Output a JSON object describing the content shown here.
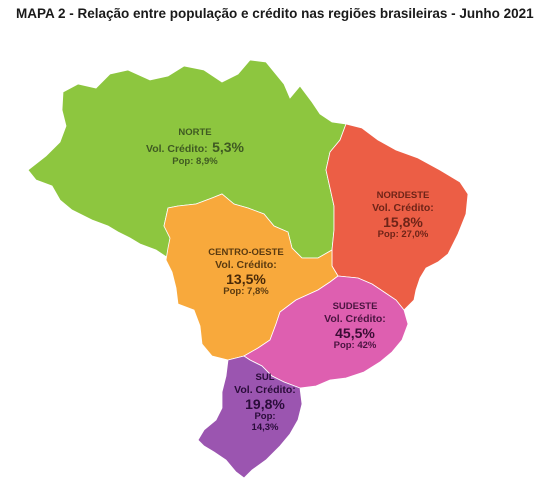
{
  "title": "MAPA 2 - Relação entre população e crédito nas regiões brasileiras - Junho 2021",
  "colors": {
    "norte": "#8dc63f",
    "nordeste": "#ec5e45",
    "centro_oeste": "#f8a93c",
    "sudeste": "#de5fb0",
    "sul": "#9b55b0"
  },
  "regions": {
    "norte": {
      "name": "NORTE",
      "credit_label": "Vol. Crédito:",
      "credit_value": "5,3%",
      "pop_label": "Pop: 8,9%"
    },
    "nordeste": {
      "name": "NORDESTE",
      "credit_label": "Vol. Crédito:",
      "credit_value": "15,8%",
      "pop_label": "Pop: 27,0%"
    },
    "centro_oeste": {
      "name": "CENTRO-OESTE",
      "credit_label": "Vol. Crédito:",
      "credit_value": "13,5%",
      "pop_label": "Pop: 7,8%"
    },
    "sudeste": {
      "name": "SUDESTE",
      "credit_label": "Vol. Crédito:",
      "credit_value": "45,5%",
      "pop_label": "Pop: 42%"
    },
    "sul": {
      "name": "SUL",
      "credit_label": "Vol. Crédito:",
      "credit_value": "19,8%",
      "pop_line1": "Pop:",
      "pop_line2": "14,3%"
    }
  }
}
